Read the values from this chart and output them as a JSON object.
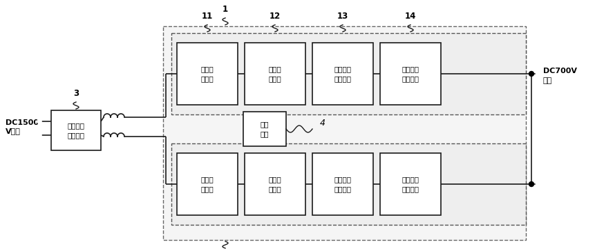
{
  "bg_color": "#ffffff",
  "line_color": "#1a1a1a",
  "input_label_line1": "DC1500",
  "input_label_line2": "V输入",
  "output_label_line1": "DC700V",
  "output_label_line2": "输出",
  "filter_box_label": "输入滤波\n电路模块",
  "boost_label": "升压电\n路模块",
  "inverter_label": "逆变电\n路模块",
  "iso_filter_label": "隔离滤波\n电路模块",
  "rect_label": "二次整流\n电路模块",
  "drive_label": "驱动\n单元",
  "label_1": "1",
  "label_3": "3",
  "label_4": "4",
  "label_11": "11",
  "label_12": "12",
  "label_13": "13",
  "label_14": "14",
  "fig_width": 8.62,
  "fig_height": 3.64,
  "dpi": 100
}
